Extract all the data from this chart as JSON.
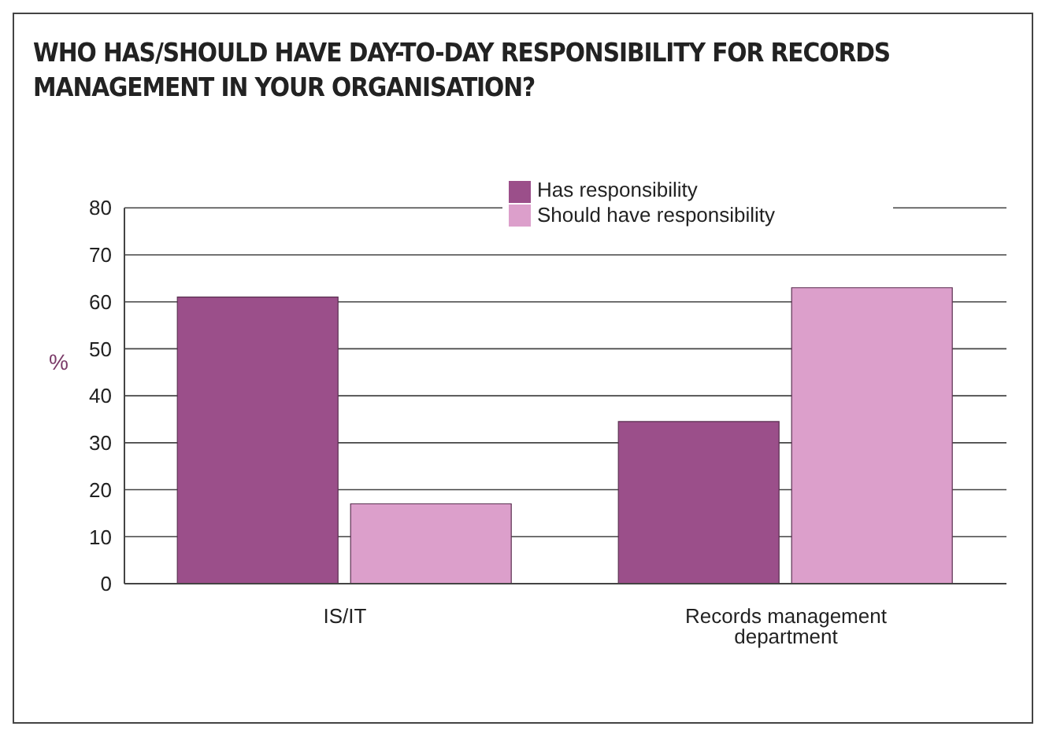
{
  "chart_data": {
    "type": "bar",
    "title": "WHO HAS/SHOULD HAVE DAY-TO-DAY RESPONSIBILITY FOR RECORDS MANAGEMENT IN YOUR ORGANISATION?",
    "ylabel": "%",
    "categories": [
      "IS/IT",
      "Records management department"
    ],
    "series": [
      {
        "name": "Has responsibility",
        "color": "#9b4f8a",
        "values": [
          61,
          34.5
        ]
      },
      {
        "name": "Should have responsibility",
        "color": "#dc9fcb",
        "values": [
          17,
          63
        ]
      }
    ],
    "ylim": [
      0,
      80
    ],
    "yticks": [
      0,
      10,
      20,
      30,
      40,
      50,
      60,
      70,
      80
    ],
    "grid": "y",
    "legend": "top"
  }
}
